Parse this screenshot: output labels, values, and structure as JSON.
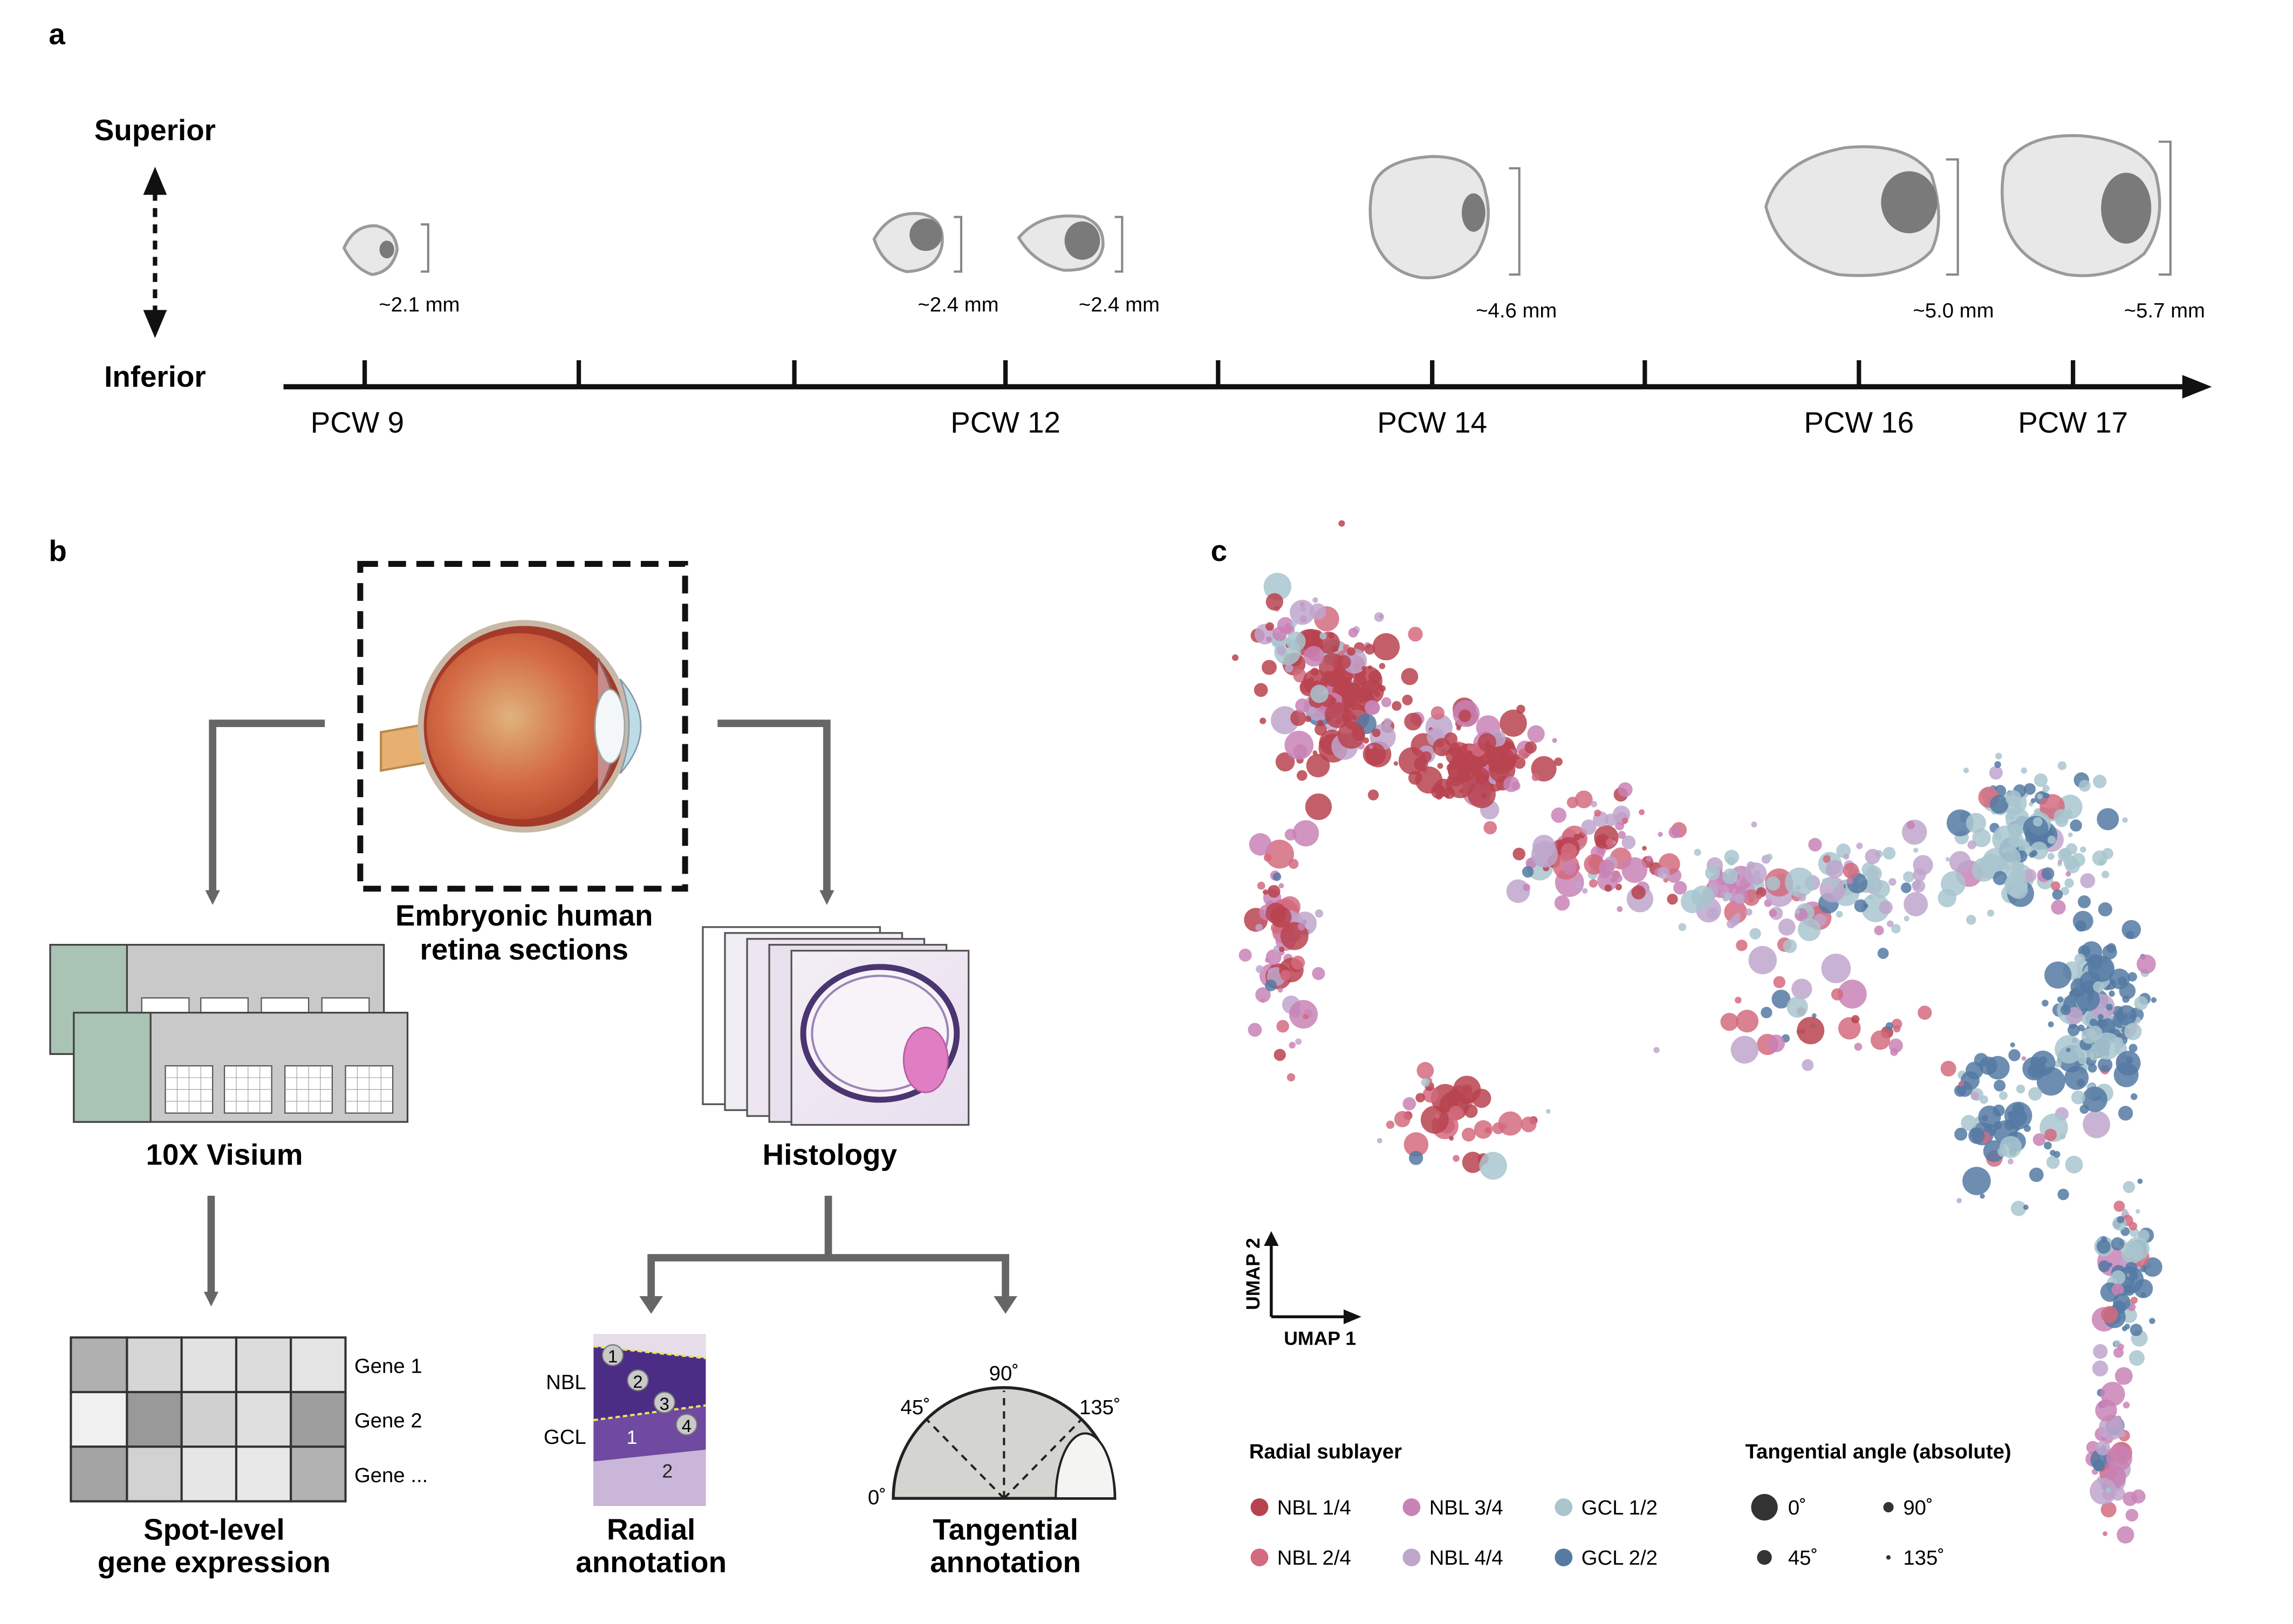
{
  "panels": {
    "a": "a",
    "b": "b",
    "c": "c"
  },
  "panel_a": {
    "orientation": {
      "top": "Superior",
      "bottom": "Inferior"
    },
    "eyes": [
      {
        "id": "eye-pcw9",
        "size_label": "~2.1 mm"
      },
      {
        "id": "eye-pcw12-a",
        "size_label": "~2.4 mm"
      },
      {
        "id": "eye-pcw12-b",
        "size_label": "~2.4 mm"
      },
      {
        "id": "eye-pcw14",
        "size_label": "~4.6 mm"
      },
      {
        "id": "eye-pcw16",
        "size_label": "~5.0 mm"
      },
      {
        "id": "eye-pcw17",
        "size_label": "~5.7 mm"
      }
    ],
    "timeline_labels": [
      "PCW 9",
      "PCW 12",
      "PCW 14",
      "PCW 16",
      "PCW 17"
    ]
  },
  "panel_b": {
    "center_label_1": "Embryonic human",
    "center_label_2": "retina sections",
    "visium_label": "10X Visium",
    "histology_label": "Histology",
    "spot_label_1": "Spot-level",
    "spot_label_2": "gene expression",
    "genes": [
      "Gene 1",
      "Gene 2",
      "Gene ..."
    ],
    "radial_label_1": "Radial",
    "radial_label_2": "annotation",
    "tangential_label_1": "Tangential",
    "tangential_label_2": "annotation",
    "layer_nbl": "NBL",
    "layer_gcl": "GCL",
    "radial_numbers": [
      "1",
      "2",
      "3",
      "4",
      "1",
      "2"
    ],
    "angles": {
      "a90": "90˚",
      "a45": "45˚",
      "a135": "135˚",
      "a0": "0˚"
    }
  },
  "panel_c": {
    "axis_y": "UMAP 2",
    "axis_x": "UMAP 1",
    "legend_radial_title": "Radial sublayer",
    "legend_tangential_title": "Tangential angle (absolute)",
    "sublayers": [
      {
        "name": "NBL 1/4",
        "color": "#b8434f"
      },
      {
        "name": "NBL 2/4",
        "color": "#d36b7f"
      },
      {
        "name": "NBL 3/4",
        "color": "#c982b6"
      },
      {
        "name": "NBL 4/4",
        "color": "#bfa6cc"
      },
      {
        "name": "GCL 1/2",
        "color": "#a9c6cf"
      },
      {
        "name": "GCL 2/2",
        "color": "#557aa3"
      }
    ],
    "angles": [
      "0˚",
      "90˚",
      "45˚",
      "135˚"
    ]
  }
}
